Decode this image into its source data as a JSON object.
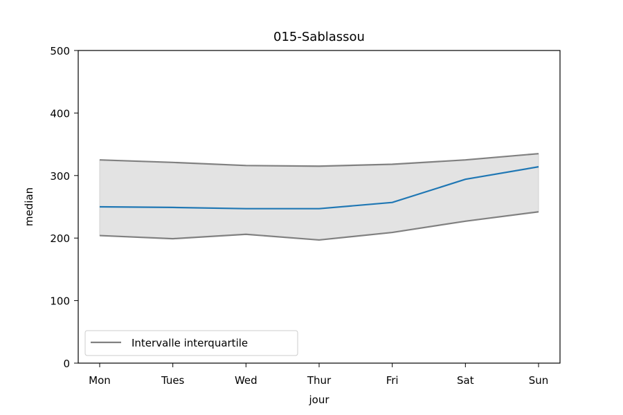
{
  "chart_data": {
    "type": "line",
    "title": "015-Sablassou",
    "xlabel": "jour",
    "ylabel": "median",
    "categories": [
      "Mon",
      "Tues",
      "Wed",
      "Thur",
      "Fri",
      "Sat",
      "Sun"
    ],
    "ylim": [
      0,
      500
    ],
    "yticks": [
      0,
      100,
      200,
      300,
      400,
      500
    ],
    "grid": false,
    "series": [
      {
        "key": "median",
        "values": [
          250,
          249,
          247,
          247,
          257,
          294,
          314
        ],
        "color": "#1f77b4"
      },
      {
        "key": "q3",
        "values": [
          325,
          321,
          316,
          315,
          318,
          325,
          335
        ],
        "color": "#808080"
      },
      {
        "key": "q1",
        "values": [
          204,
          199,
          206,
          197,
          209,
          227,
          242
        ],
        "color": "#808080"
      }
    ],
    "band_fill": "#e3e3e3",
    "legend": {
      "position": "lower left",
      "entries": [
        {
          "label": "Intervalle interquartile",
          "color": "#808080"
        }
      ]
    }
  }
}
